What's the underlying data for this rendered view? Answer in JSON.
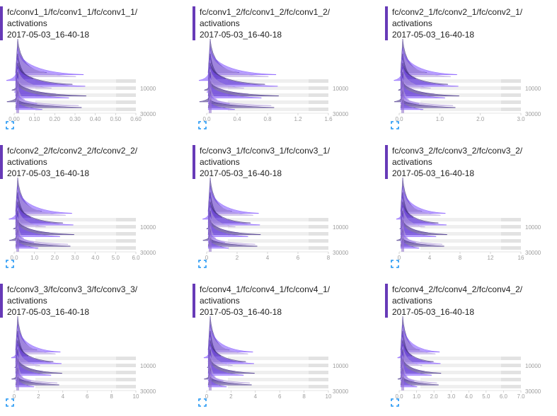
{
  "cards": [
    {
      "run_path": "fc/conv1_1/fc/conv1_1/fc/conv1_1/",
      "tag": "activations",
      "run_time": "2017-05-03_16-40-18",
      "x_ticks": [
        "0.00",
        "0.10",
        "0.20",
        "0.30",
        "0.40",
        "0.50",
        "0.60"
      ],
      "x_max": 0.65,
      "spread": 0.55
    },
    {
      "run_path": "fc/conv1_2/fc/conv1_2/fc/conv1_2/",
      "tag": "activations",
      "run_time": "2017-05-03_16-40-18",
      "x_ticks": [
        "0.0",
        "0.4",
        "0.8",
        "1.2",
        "1.6"
      ],
      "x_max": 1.6,
      "spread": 0.55
    },
    {
      "run_path": "fc/conv2_1/fc/conv2_1/fc/conv2_1/",
      "tag": "activations",
      "run_time": "2017-05-03_16-40-18",
      "x_ticks": [
        "0.0",
        "1.0",
        "2.0",
        "3.0"
      ],
      "x_max": 3.5,
      "spread": 0.45
    },
    {
      "run_path": "fc/conv2_2/fc/conv2_2/fc/conv2_2/",
      "tag": "activations",
      "run_time": "2017-05-03_16-40-18",
      "x_ticks": [
        "0.0",
        "1.0",
        "2.0",
        "3.0",
        "4.0",
        "5.0",
        "6.0"
      ],
      "x_max": 6.0,
      "spread": 0.45
    },
    {
      "run_path": "fc/conv3_1/fc/conv3_1/fc/conv3_1/",
      "tag": "activations",
      "run_time": "2017-05-03_16-40-18",
      "x_ticks": [
        "0",
        "2",
        "4",
        "6",
        "8"
      ],
      "x_max": 8.0,
      "spread": 0.4
    },
    {
      "run_path": "fc/conv3_2/fc/conv3_2/fc/conv3_2/",
      "tag": "activations",
      "run_time": "2017-05-03_16-40-18",
      "x_ticks": [
        "0",
        "4",
        "8",
        "12",
        "16"
      ],
      "x_max": 16.0,
      "spread": 0.35
    },
    {
      "run_path": "fc/conv3_3/fc/conv3_3/fc/conv3_3/",
      "tag": "activations",
      "run_time": "2017-05-03_16-40-18",
      "x_ticks": [
        "0",
        "2",
        "4",
        "6",
        "8",
        "10"
      ],
      "x_max": 10.0,
      "spread": 0.35
    },
    {
      "run_path": "fc/conv4_1/fc/conv4_1/fc/conv4_1/",
      "tag": "activations",
      "run_time": "2017-05-03_16-40-18",
      "x_ticks": [
        "0",
        "2",
        "4",
        "6",
        "8",
        "10"
      ],
      "x_max": 10.0,
      "spread": 0.35
    },
    {
      "run_path": "fc/conv4_2/fc/conv4_2/fc/conv4_2/",
      "tag": "activations",
      "run_time": "2017-05-03_16-40-18",
      "x_ticks": [
        "0.0",
        "1.0",
        "2.0",
        "3.0",
        "4.0",
        "5.0",
        "6.0",
        "7.0"
      ],
      "x_max": 7.0,
      "spread": 0.3
    }
  ],
  "y_ticks": [
    "10000",
    "30000"
  ],
  "expand_icon": "fullscreen-expand-icon",
  "colors": {
    "accent": "#673ab7",
    "series": "#7c4dff",
    "icon": "#2196f3"
  }
}
